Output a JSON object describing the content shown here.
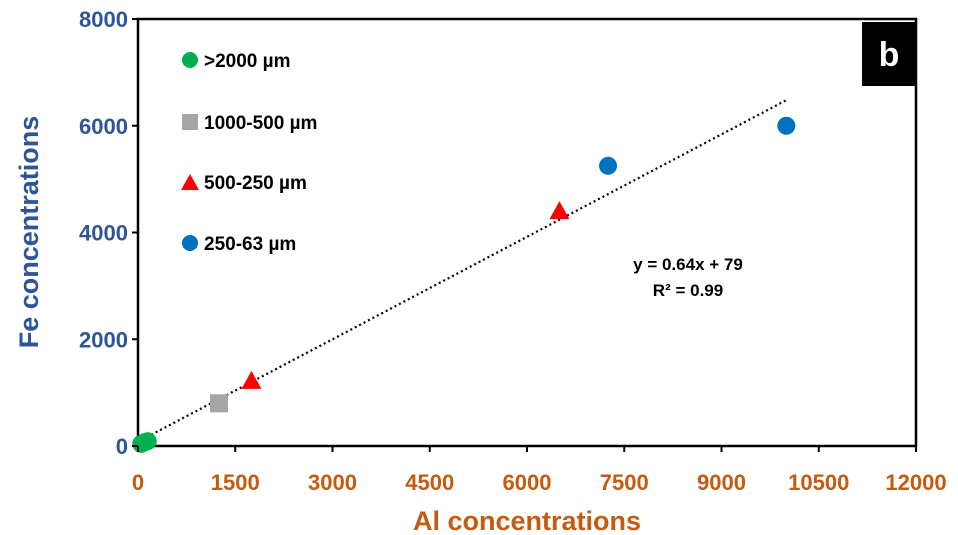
{
  "chart_data": {
    "type": "scatter",
    "xlabel": "Al concentrations",
    "ylabel": "Fe concentrations",
    "xlim": [
      0,
      12000
    ],
    "ylim": [
      0,
      8000
    ],
    "xticks": [
      0,
      1500,
      3000,
      4500,
      6000,
      7500,
      9000,
      10500,
      12000
    ],
    "yticks": [
      0,
      2000,
      4000,
      6000,
      8000
    ],
    "panel_label": "b",
    "legend_position": "top-left",
    "series": [
      {
        "name": ">2000 µm",
        "marker": "circle",
        "color": "#00B050",
        "points": [
          {
            "x": 50,
            "y": 40
          },
          {
            "x": 100,
            "y": 70
          },
          {
            "x": 150,
            "y": 90
          }
        ]
      },
      {
        "name": "1000-500 µm",
        "marker": "square",
        "color": "#A5A5A5",
        "points": [
          {
            "x": 1250,
            "y": 800
          }
        ]
      },
      {
        "name": "500-250 µm",
        "marker": "triangle",
        "color": "#FF0000",
        "points": [
          {
            "x": 1750,
            "y": 1220
          },
          {
            "x": 6500,
            "y": 4400
          }
        ]
      },
      {
        "name": "250-63 µm",
        "marker": "circle",
        "color": "#0070C0",
        "points": [
          {
            "x": 7250,
            "y": 5250
          },
          {
            "x": 10000,
            "y": 6000
          }
        ]
      }
    ],
    "trendline": {
      "type": "linear",
      "style": "dotted",
      "color": "#000000",
      "slope": 0.64,
      "intercept": 79,
      "x_range": [
        0,
        10000
      ],
      "equation": "y = 0.64x + 79",
      "r_squared": "R² = 0.99"
    },
    "colors": {
      "y_axis_text": "#2E5597",
      "x_axis_text": "#C55A11",
      "panel_bg": "#000000",
      "panel_text": "#FFFFFF"
    }
  }
}
